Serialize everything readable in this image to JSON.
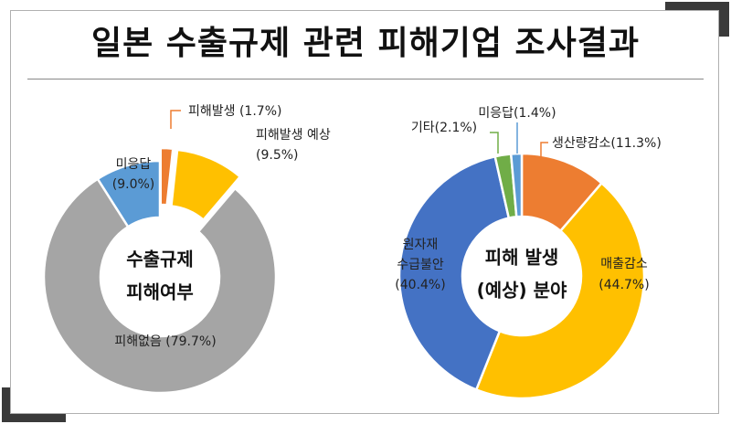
{
  "title": "일본 수출규제 관련 피해기업 조사결과",
  "colors": {
    "frame": "#b0b0b0",
    "corner": "#3a3a3a",
    "gray": "#a5a5a5",
    "blue": "#4472c4",
    "light_blue": "#5b9bd5",
    "orange": "#ed7d31",
    "yellow": "#ffc000",
    "green": "#70ad47"
  },
  "chart_data": [
    {
      "type": "pie",
      "donut": true,
      "center_label": [
        "수출규제",
        "피해여부"
      ],
      "slices": [
        {
          "name": "피해발생",
          "value": 1.7,
          "label": "피해발생 (1.7%)",
          "color": "#ed7d31",
          "exploded": true
        },
        {
          "name": "피해발생 예상",
          "value": 9.5,
          "label_lines": [
            "피해발생 예상",
            "(9.5%)"
          ],
          "color": "#ffc000",
          "exploded": true
        },
        {
          "name": "피해없음",
          "value": 79.7,
          "label": "피해없음 (79.7%)",
          "color": "#a5a5a5"
        },
        {
          "name": "미응답",
          "value": 9.0,
          "label_lines": [
            "미응답",
            "(9.0%)"
          ],
          "color": "#5b9bd5"
        }
      ]
    },
    {
      "type": "pie",
      "donut": true,
      "center_label": [
        "피해 발생",
        "(예상) 분야"
      ],
      "slices": [
        {
          "name": "생산량감소",
          "value": 11.3,
          "label": "생산량감소(11.3%)",
          "color": "#ed7d31"
        },
        {
          "name": "매출감소",
          "value": 44.7,
          "label_lines": [
            "매출감소",
            "(44.7%)"
          ],
          "color": "#ffc000"
        },
        {
          "name": "원자재 수급불안",
          "value": 40.4,
          "label_lines": [
            "원자재",
            "수급불안",
            "(40.4%)"
          ],
          "color": "#4472c4"
        },
        {
          "name": "기타",
          "value": 2.1,
          "label": "기타(2.1%)",
          "color": "#70ad47"
        },
        {
          "name": "미응답",
          "value": 1.4,
          "label": "미응답(1.4%)",
          "color": "#5b9bd5"
        }
      ]
    }
  ]
}
